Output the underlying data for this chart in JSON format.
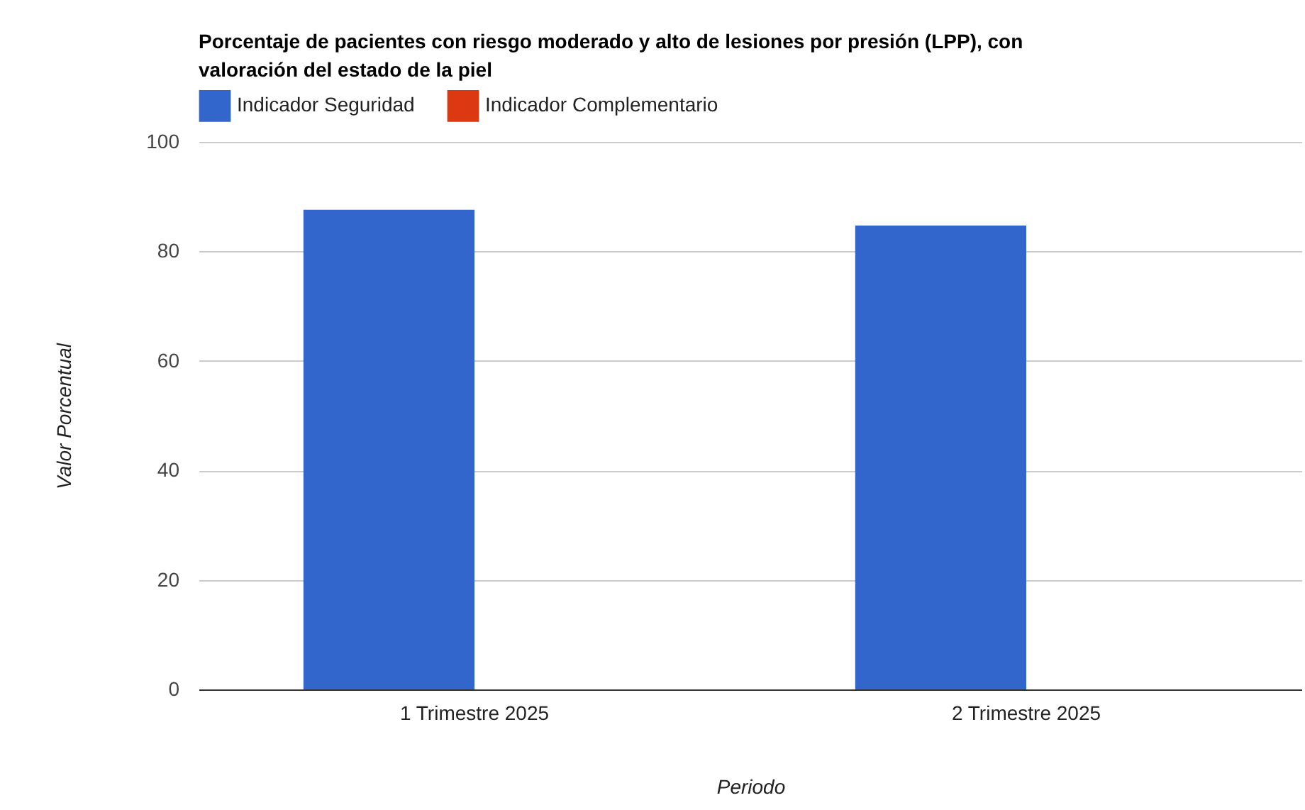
{
  "chart_data": {
    "type": "bar",
    "title": "Porcentaje de pacientes con riesgo moderado y alto de lesiones por presión (LPP), con valoración del estado de la piel",
    "xlabel": "Periodo",
    "ylabel": "Valor Porcentual",
    "categories": [
      "1 Trimestre 2025",
      "2 Trimestre 2025"
    ],
    "series": [
      {
        "name": "Indicador Seguridad",
        "color": "#3366cc",
        "values": [
          87.6,
          84.7
        ]
      },
      {
        "name": "Indicador Complementario",
        "color": "#dc3912",
        "values": [
          0,
          0
        ]
      }
    ],
    "ylim": [
      0,
      100
    ],
    "yticks": [
      0,
      20,
      40,
      60,
      80,
      100
    ],
    "grid": "y",
    "legend": "top left"
  }
}
